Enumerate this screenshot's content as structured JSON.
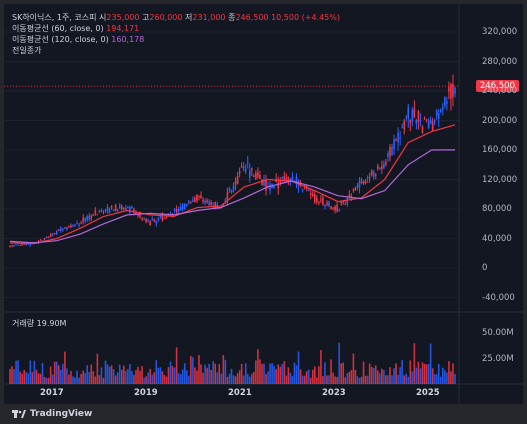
{
  "legend": {
    "symbol": "SK하이닉스, 1주, 코스피",
    "open_label": "시",
    "open": "235,000",
    "high_label": "고",
    "high": "260,000",
    "low_label": "저",
    "low": "231,000",
    "close_label": "종",
    "close": "246,500",
    "change": "10,500 (+4.45%)",
    "ma60_label": "이동평균선 (60, close, 0)",
    "ma60_value": "194,171",
    "ma120_label": "이동평균선 (120, close, 0)",
    "ma120_value": "160,178",
    "prev_label": "전일종가"
  },
  "volume": {
    "label": "거래량",
    "value": "19.90M"
  },
  "price_tag": "246,500",
  "y_axis": [
    "320,000",
    "280,000",
    "240,000",
    "200,000",
    "160,000",
    "120,000",
    "80,000",
    "40,000",
    "0",
    "-40,000"
  ],
  "vol_axis": [
    "50.00M",
    "25.00M"
  ],
  "x_axis": [
    "2017",
    "2019",
    "2021",
    "2023",
    "2025"
  ],
  "brand": "TradingView",
  "colors": {
    "up": "#089981",
    "down": "#f23645",
    "ma60": "#f23645",
    "ma120": "#b268d6",
    "candle": "#2962ff"
  },
  "chart_data": {
    "type": "line",
    "x": [
      "2016-01",
      "2016-07",
      "2017-01",
      "2017-07",
      "2018-01",
      "2018-07",
      "2019-01",
      "2019-07",
      "2020-01",
      "2020-07",
      "2021-01",
      "2021-07",
      "2022-01",
      "2022-07",
      "2023-01",
      "2023-07",
      "2024-01",
      "2024-07",
      "2025-01",
      "2025-07"
    ],
    "series": [
      {
        "name": "",
        "values": [
          30000,
          33000,
          48000,
          62000,
          80000,
          82000,
          62000,
          75000,
          95000,
          80000,
          140000,
          110000,
          125000,
          95000,
          80000,
          115000,
          140000,
          210000,
          190000,
          246500
        ]
      },
      {
        "name": "이동평균선 (60, close, 0)",
        "values": [
          34000,
          33000,
          40000,
          54000,
          70000,
          78000,
          72000,
          70000,
          82000,
          84000,
          110000,
          120000,
          118000,
          105000,
          90000,
          95000,
          120000,
          170000,
          185000,
          194171
        ]
      },
      {
        "name": "이동평균선 (120, close, 0)",
        "values": [
          36000,
          34000,
          37000,
          46000,
          60000,
          72000,
          74000,
          72000,
          78000,
          82000,
          95000,
          110000,
          118000,
          110000,
          98000,
          94000,
          105000,
          140000,
          160000,
          160178
        ]
      }
    ],
    "ylim": [
      -60000,
      340000
    ]
  }
}
